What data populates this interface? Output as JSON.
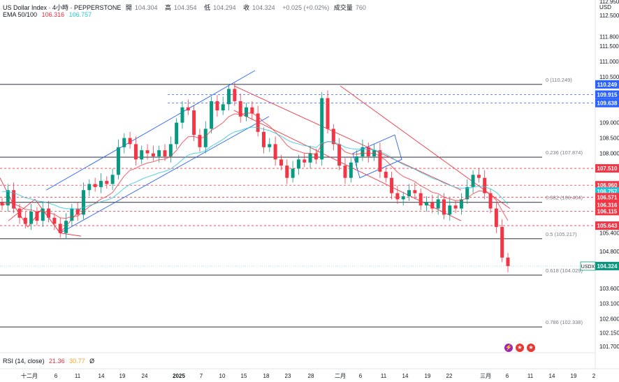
{
  "header": {
    "symbol": "US Dollar Index · 4小時 · PEPPERSTONE",
    "open_label": "開",
    "open": "104.304",
    "high_label": "高",
    "high": "104.354",
    "low_label": "低",
    "low": "104.294",
    "close_label": "收",
    "close": "104.324",
    "change": "+0.025 (+0.02%)",
    "volume_label": "成交量",
    "volume": "760",
    "ema_label": "EMA 50/100",
    "ema50": "106.316",
    "ema100": "106.757",
    "currency": "USD"
  },
  "rsi": {
    "label": "RSI (14, close)",
    "v1": "21.36",
    "v2": "30.77",
    "v3": "Ø"
  },
  "colors": {
    "up": "#089981",
    "down": "#f23645",
    "ema50": "#f23645",
    "ema100": "#26c6da",
    "channel_up": "#2962ff",
    "channel_down": "#f23645",
    "fib": "#131722"
  },
  "chart_data": {
    "type": "candlestick",
    "symbol_badge": "USDX",
    "ylim": [
      101.5,
      113.0
    ],
    "y_ticks": [
      "112.950",
      "112.500",
      "111.800",
      "111.500",
      "111.000",
      "110.500",
      "109.000",
      "108.500",
      "108.000",
      "105.400",
      "104.800",
      "103.600",
      "103.100",
      "102.600",
      "102.150",
      "101.700"
    ],
    "x_ticks": [
      "十二月",
      "6",
      "11",
      "14",
      "19",
      "24",
      "2025",
      "7",
      "10",
      "15",
      "18",
      "23",
      "28",
      "二月",
      "6",
      "11",
      "14",
      "19",
      "22",
      "三月",
      "6",
      "11",
      "14",
      "19",
      "2"
    ],
    "fib_levels": [
      {
        "label": "0 (110.249)",
        "value": 110.249
      },
      {
        "label": "0.236 (107.874)",
        "value": 107.874
      },
      {
        "label": "0.382 (106.404)",
        "value": 106.404
      },
      {
        "label": "0.5 (105.217)",
        "value": 105.217
      },
      {
        "label": "0.618 (104.029)",
        "value": 104.029
      },
      {
        "label": "0.786 (102.338)",
        "value": 102.338
      }
    ],
    "price_badges": [
      {
        "value": "110.249",
        "color": "#2962ff"
      },
      {
        "value": "109.915",
        "color": "#2962ff"
      },
      {
        "value": "109.638",
        "color": "#2962ff"
      },
      {
        "value": "107.510",
        "color": "#f23645"
      },
      {
        "value": "106.960",
        "color": "#f23645"
      },
      {
        "value": "106.757",
        "color": "#26c6da"
      },
      {
        "value": "106.571",
        "color": "#f23645"
      },
      {
        "value": "106.316",
        "color": "#f23645"
      },
      {
        "value": "106.115",
        "color": "#f23645"
      },
      {
        "value": "105.643",
        "color": "#f23645"
      },
      {
        "value": "104.324",
        "color": "#089981"
      }
    ],
    "dashed_levels": [
      {
        "value": 109.915,
        "color": "#2962ff"
      },
      {
        "value": 109.638,
        "color": "#2962ff"
      },
      {
        "value": 107.51,
        "color": "#f23645"
      },
      {
        "value": 106.96,
        "color": "#f23645"
      },
      {
        "value": 106.571,
        "color": "#f23645"
      },
      {
        "value": 106.115,
        "color": "#f23645"
      },
      {
        "value": 105.643,
        "color": "#f23645"
      }
    ],
    "close_path": [
      106.3,
      106.8,
      106.2,
      105.9,
      105.7,
      106.1,
      105.8,
      106.2,
      105.9,
      105.7,
      105.4,
      105.8,
      106.2,
      106.0,
      106.8,
      107.0,
      106.9,
      107.1,
      107.0,
      107.3,
      108.2,
      108.5,
      108.3,
      107.8,
      108.1,
      108.0,
      107.9,
      108.1,
      107.9,
      108.3,
      109.0,
      109.5,
      109.4,
      108.6,
      108.2,
      108.8,
      109.7,
      109.4,
      109.6,
      110.1,
      109.7,
      109.2,
      109.5,
      109.3,
      108.7,
      108.2,
      108.3,
      107.8,
      107.6,
      107.2,
      107.5,
      107.8,
      107.7,
      108.0,
      107.8,
      109.8,
      108.8,
      108.3,
      107.6,
      107.2,
      107.7,
      107.9,
      108.2,
      107.9,
      108.1,
      107.4,
      107.2,
      106.7,
      106.5,
      106.6,
      106.8,
      106.7,
      106.3,
      106.4,
      106.2,
      106.5,
      106.0,
      106.3,
      106.2,
      106.5,
      106.9,
      107.3,
      107.2,
      106.7,
      106.2,
      105.6,
      104.6,
      104.324
    ],
    "candle_dates_from_x_start": "Nov 25",
    "current_price": 104.324
  }
}
